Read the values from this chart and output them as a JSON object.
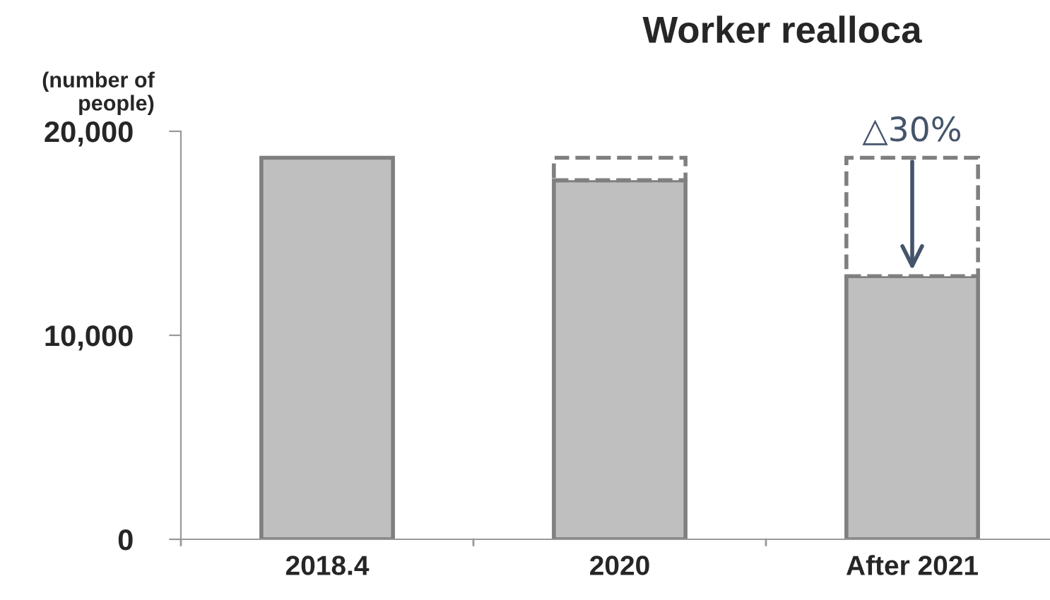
{
  "chart_data": {
    "type": "bar",
    "title": "Worker realloca",
    "ylabel": "(number of\npeople)",
    "categories": [
      "2018.4",
      "2020",
      "After 2021"
    ],
    "stacked": true,
    "series": [
      {
        "color": "#bfbfbf",
        "values": [
          18700,
          17600,
          12900
        ]
      },
      {
        "color": "#ffffff",
        "values": [
          null,
          1100,
          5800
        ],
        "line_style": "dashed"
      }
    ],
    "ylim": [
      0,
      20000
    ],
    "yticks": [
      {
        "value": 0,
        "label": "0"
      },
      {
        "value": 10000,
        "label": "10,000"
      },
      {
        "value": 20000,
        "label": "20,000"
      }
    ],
    "annotations": [
      {
        "text": "△30%",
        "x": "After 2021",
        "y": 18700
      }
    ],
    "grid": false,
    "legend": false
  }
}
